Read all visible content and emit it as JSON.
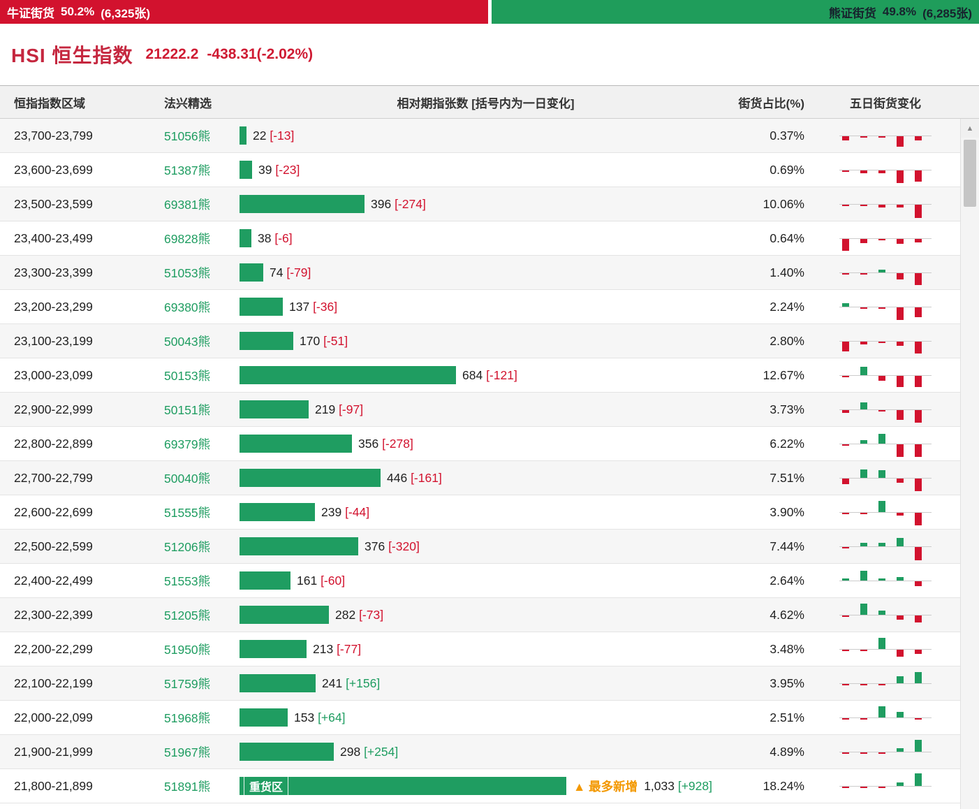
{
  "top_bar": {
    "bull": {
      "label": "牛证街货",
      "pct": "50.2%",
      "count": "(6,325张)",
      "width_pct": 50.2,
      "color": "#d2122e"
    },
    "bear": {
      "label": "熊证街货",
      "pct": "49.8%",
      "count": "(6,285张)",
      "width_pct": 49.8,
      "color": "#1f9d5b"
    }
  },
  "header": {
    "title": "HSI 恒生指数",
    "price": "21222.2",
    "change": "-438.31(-2.02%)"
  },
  "table": {
    "columns": [
      "恒指指数区域",
      "法兴精选",
      "相对期指张数 [括号内为一日变化]",
      "街货占比(%)",
      "五日街货变化"
    ],
    "max_value": 1033,
    "rows": [
      {
        "range": "23,700-23,799",
        "code": "51056熊",
        "value": 22,
        "value_str": "22",
        "change": "[-13]",
        "pct": "0.37%",
        "spark": [
          -1,
          -0.3,
          -0.3,
          -2.5,
          -1
        ]
      },
      {
        "range": "23,600-23,699",
        "code": "51387熊",
        "value": 39,
        "value_str": "39",
        "change": "[-23]",
        "pct": "0.69%",
        "spark": [
          -0.3,
          -0.6,
          -0.6,
          -3,
          -2.6
        ]
      },
      {
        "range": "23,500-23,599",
        "code": "69381熊",
        "value": 396,
        "value_str": "396",
        "change": "[-274]",
        "pct": "10.06%",
        "spark": [
          -0.3,
          -0.3,
          -0.6,
          -0.6,
          -3.2
        ]
      },
      {
        "range": "23,400-23,499",
        "code": "69828熊",
        "value": 38,
        "value_str": "38",
        "change": "[-6]",
        "pct": "0.64%",
        "spark": [
          -2.8,
          -1,
          -0.3,
          -1.2,
          -0.8
        ]
      },
      {
        "range": "23,300-23,399",
        "code": "51053熊",
        "value": 74,
        "value_str": "74",
        "change": "[-79]",
        "pct": "1.40%",
        "spark": [
          -0.3,
          -0.3,
          0.6,
          -1.5,
          -2.8
        ]
      },
      {
        "range": "23,200-23,299",
        "code": "69380熊",
        "value": 137,
        "value_str": "137",
        "change": "[-36]",
        "pct": "2.24%",
        "spark": [
          0.8,
          -0.3,
          -0.3,
          -3,
          -2.4
        ]
      },
      {
        "range": "23,100-23,199",
        "code": "50043熊",
        "value": 170,
        "value_str": "170",
        "change": "[-51]",
        "pct": "2.80%",
        "spark": [
          -2.4,
          -0.6,
          -0.3,
          -1,
          -2.8
        ]
      },
      {
        "range": "23,000-23,099",
        "code": "50153熊",
        "value": 684,
        "value_str": "684",
        "change": "[-121]",
        "pct": "12.67%",
        "spark": [
          -0.3,
          2,
          -1.2,
          -2.6,
          -2.6
        ]
      },
      {
        "range": "22,900-22,999",
        "code": "50151熊",
        "value": 219,
        "value_str": "219",
        "change": "[-97]",
        "pct": "3.73%",
        "spark": [
          -0.6,
          1.6,
          -0.3,
          -2.4,
          -3
        ]
      },
      {
        "range": "22,800-22,899",
        "code": "69379熊",
        "value": 356,
        "value_str": "356",
        "change": "[-278]",
        "pct": "6.22%",
        "spark": [
          -0.3,
          0.8,
          2.4,
          -3,
          -3
        ]
      },
      {
        "range": "22,700-22,799",
        "code": "50040熊",
        "value": 446,
        "value_str": "446",
        "change": "[-161]",
        "pct": "7.51%",
        "spark": [
          -1.4,
          2,
          1.8,
          -1,
          -3
        ]
      },
      {
        "range": "22,600-22,699",
        "code": "51555熊",
        "value": 239,
        "value_str": "239",
        "change": "[-44]",
        "pct": "3.90%",
        "spark": [
          -0.3,
          -0.3,
          2.6,
          -0.6,
          -3
        ]
      },
      {
        "range": "22,500-22,599",
        "code": "51206熊",
        "value": 376,
        "value_str": "376",
        "change": "[-320]",
        "pct": "7.44%",
        "spark": [
          -0.3,
          0.8,
          0.8,
          2,
          -3.2
        ]
      },
      {
        "range": "22,400-22,499",
        "code": "51553熊",
        "value": 161,
        "value_str": "161",
        "change": "[-60]",
        "pct": "2.64%",
        "spark": [
          0.5,
          2.4,
          0.5,
          0.8,
          -1.2
        ]
      },
      {
        "range": "22,300-22,399",
        "code": "51205熊",
        "value": 282,
        "value_str": "282",
        "change": "[-73]",
        "pct": "4.62%",
        "spark": [
          -0.3,
          2.6,
          1,
          -1,
          -1.6
        ]
      },
      {
        "range": "22,200-22,299",
        "code": "51950熊",
        "value": 213,
        "value_str": "213",
        "change": "[-77]",
        "pct": "3.48%",
        "spark": [
          -0.3,
          -0.3,
          2.6,
          -1.6,
          -1
        ]
      },
      {
        "range": "22,100-22,199",
        "code": "51759熊",
        "value": 241,
        "value_str": "241",
        "change": "[+156]",
        "pct": "3.95%",
        "spark": [
          -0.3,
          -0.3,
          -0.3,
          1.6,
          2.6
        ]
      },
      {
        "range": "22,000-22,099",
        "code": "51968熊",
        "value": 153,
        "value_str": "153",
        "change": "[+64]",
        "pct": "2.51%",
        "spark": [
          -0.3,
          -0.3,
          2.6,
          1.4,
          -0.3
        ]
      },
      {
        "range": "21,900-21,999",
        "code": "51967熊",
        "value": 298,
        "value_str": "298",
        "change": "[+254]",
        "pct": "4.89%",
        "spark": [
          -0.3,
          -0.3,
          -0.3,
          0.8,
          2.8
        ]
      },
      {
        "range": "21,800-21,899",
        "code": "51891熊",
        "value": 1033,
        "value_str": "1,033",
        "change": "[+928]",
        "pct": "18.24%",
        "spark": [
          -0.3,
          -0.3,
          -0.3,
          0.8,
          3
        ],
        "heavy": true,
        "heavy_label": "重货区",
        "annotation": "▲ 最多新增"
      }
    ]
  },
  "icons": {
    "scroll_up": "▲"
  },
  "colors": {
    "red": "#d2122e",
    "green": "#1f9d61",
    "bear_bg": "#1f9d5b",
    "annotation_orange": "#f39800"
  }
}
